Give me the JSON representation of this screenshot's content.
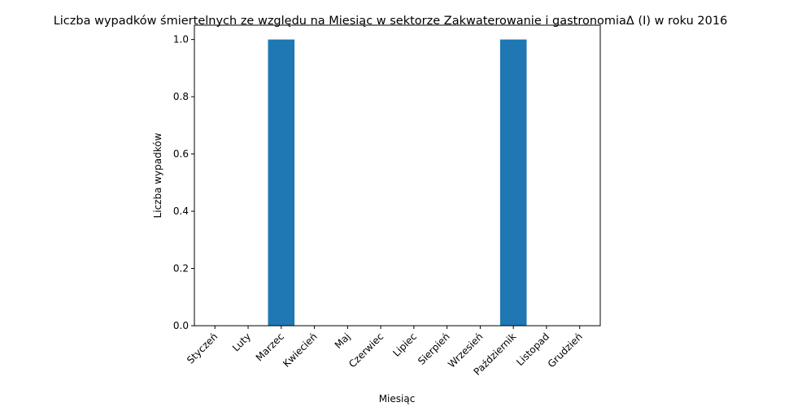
{
  "chart_data": {
    "type": "bar",
    "title": "Liczba wypadków śmiertelnych ze względu na Miesiąc w sektorze Zakwaterowanie i gastronomiaΔ (I) w roku 2016",
    "xlabel": "Miesiąc",
    "ylabel": "Liczba wypadków",
    "categories": [
      "Styczeń",
      "Luty",
      "Marzec",
      "Kwiecień",
      "Maj",
      "Czerwiec",
      "Lipiec",
      "Sierpień",
      "Wrzesień",
      "Październik",
      "Listopad",
      "Grudzień"
    ],
    "values": [
      0,
      0,
      1,
      0,
      0,
      0,
      0,
      0,
      0,
      1,
      0,
      0
    ],
    "ylim": [
      0,
      1.05
    ],
    "yticks": [
      "0.0",
      "0.2",
      "0.4",
      "0.6",
      "0.8",
      "1.0"
    ],
    "grid": false,
    "bar_color": "#1f77b4"
  }
}
